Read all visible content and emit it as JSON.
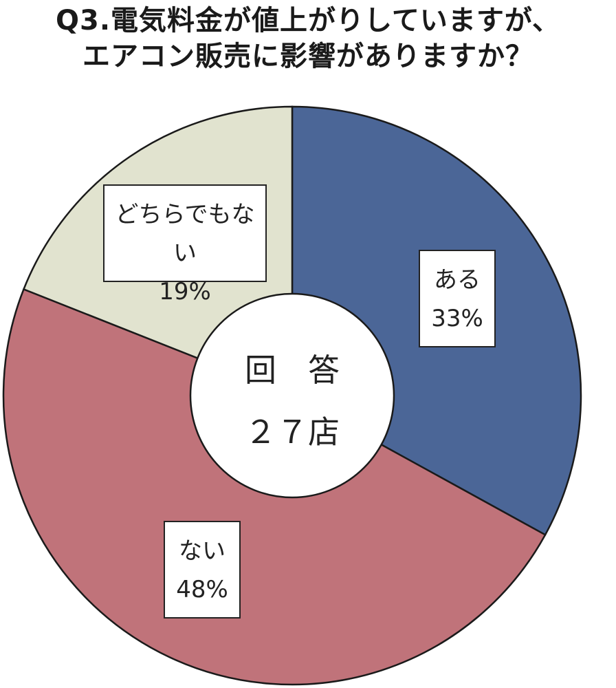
{
  "title": {
    "line1": "Q3.電気料金が値上がりしていますが、",
    "line2": "エアコン販売に影響がありますか？"
  },
  "center": {
    "line1": "回　答",
    "line2": "２７店"
  },
  "chart_data": {
    "type": "pie",
    "donut": true,
    "start": "12 o'clock",
    "direction": "clockwise",
    "slices": [
      {
        "label": "ある",
        "value": 33,
        "value_label": "33%",
        "color": "#4b6697"
      },
      {
        "label": "ない",
        "value": 48,
        "value_label": "48%",
        "color": "#c0737a"
      },
      {
        "label": "どちらでもない",
        "value": 19,
        "value_label": "19%",
        "color": "#e1e3cf"
      }
    ]
  }
}
